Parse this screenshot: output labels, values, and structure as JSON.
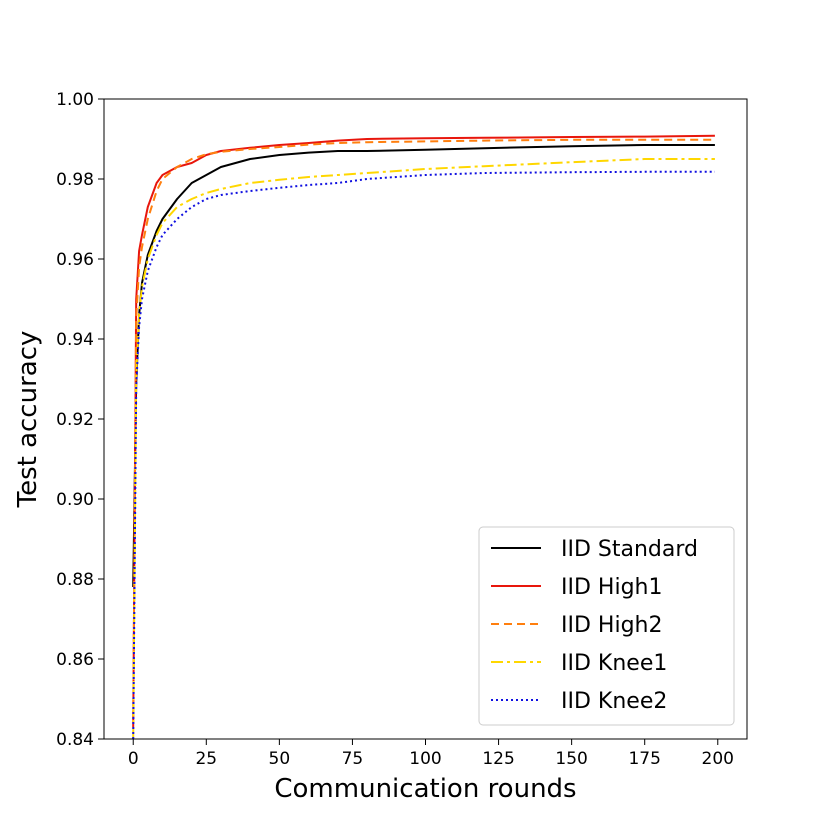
{
  "chart_data": {
    "type": "line",
    "xlabel": "Communication rounds",
    "ylabel": "Test accuracy",
    "xlim": [
      -10,
      210
    ],
    "ylim": [
      0.84,
      1.0
    ],
    "xticks": [
      0,
      25,
      50,
      75,
      100,
      125,
      150,
      175,
      200
    ],
    "yticks": [
      0.84,
      0.86,
      0.88,
      0.9,
      0.92,
      0.94,
      0.96,
      0.98,
      1.0
    ],
    "xtick_labels": [
      "0",
      "25",
      "50",
      "75",
      "100",
      "125",
      "150",
      "175",
      "200"
    ],
    "ytick_labels": [
      "0.84",
      "0.86",
      "0.88",
      "0.90",
      "0.92",
      "0.94",
      "0.96",
      "0.98",
      "1.00"
    ],
    "grid": false,
    "legend_position": "lower-right",
    "series": [
      {
        "name": "IID Standard",
        "color": "#000000",
        "dash": "solid",
        "x": [
          0,
          1,
          2,
          3,
          5,
          8,
          10,
          15,
          20,
          25,
          30,
          40,
          50,
          60,
          70,
          80,
          100,
          120,
          150,
          175,
          199
        ],
        "y": [
          0.878,
          0.929,
          0.946,
          0.954,
          0.961,
          0.967,
          0.97,
          0.975,
          0.979,
          0.981,
          0.983,
          0.985,
          0.986,
          0.9866,
          0.987,
          0.987,
          0.9873,
          0.9877,
          0.9882,
          0.9885,
          0.9885
        ]
      },
      {
        "name": "IID High1",
        "color": "#e8160c",
        "dash": "solid",
        "x": [
          0,
          1,
          2,
          3,
          5,
          8,
          10,
          15,
          20,
          25,
          30,
          40,
          50,
          60,
          70,
          80,
          100,
          120,
          150,
          175,
          199
        ],
        "y": [
          0.843,
          0.95,
          0.962,
          0.966,
          0.973,
          0.979,
          0.981,
          0.983,
          0.984,
          0.986,
          0.987,
          0.9878,
          0.9885,
          0.989,
          0.9896,
          0.99,
          0.9902,
          0.9903,
          0.9905,
          0.9906,
          0.9908
        ]
      },
      {
        "name": "IID High2",
        "color": "#ff7f0e",
        "dash": "8,5",
        "x": [
          0,
          1,
          2,
          3,
          5,
          8,
          10,
          15,
          20,
          25,
          30,
          40,
          50,
          60,
          70,
          80,
          100,
          120,
          150,
          175,
          199
        ],
        "y": [
          0.845,
          0.945,
          0.958,
          0.963,
          0.97,
          0.977,
          0.98,
          0.983,
          0.985,
          0.9862,
          0.9868,
          0.9875,
          0.988,
          0.9886,
          0.989,
          0.9892,
          0.9894,
          0.9896,
          0.9898,
          0.9898,
          0.9898
        ]
      },
      {
        "name": "IID Knee1",
        "color": "#ffd700",
        "dash": "12,4,3,4",
        "x": [
          0,
          1,
          2,
          3,
          5,
          8,
          10,
          15,
          20,
          25,
          30,
          40,
          50,
          60,
          70,
          80,
          100,
          120,
          150,
          175,
          199
        ],
        "y": [
          0.84,
          0.931,
          0.946,
          0.953,
          0.96,
          0.966,
          0.969,
          0.973,
          0.975,
          0.9765,
          0.9775,
          0.979,
          0.9798,
          0.9805,
          0.981,
          0.9815,
          0.9825,
          0.9832,
          0.9842,
          0.985,
          0.985
        ]
      },
      {
        "name": "IID Knee2",
        "color": "#1010e0",
        "dash": "2,3",
        "x": [
          0,
          1,
          2,
          3,
          5,
          8,
          10,
          15,
          20,
          25,
          30,
          40,
          50,
          60,
          70,
          80,
          100,
          120,
          150,
          175,
          199
        ],
        "y": [
          0.84,
          0.928,
          0.943,
          0.95,
          0.957,
          0.963,
          0.966,
          0.97,
          0.973,
          0.975,
          0.976,
          0.977,
          0.9778,
          0.9785,
          0.979,
          0.98,
          0.981,
          0.9815,
          0.9817,
          0.9818,
          0.9818
        ]
      }
    ]
  }
}
